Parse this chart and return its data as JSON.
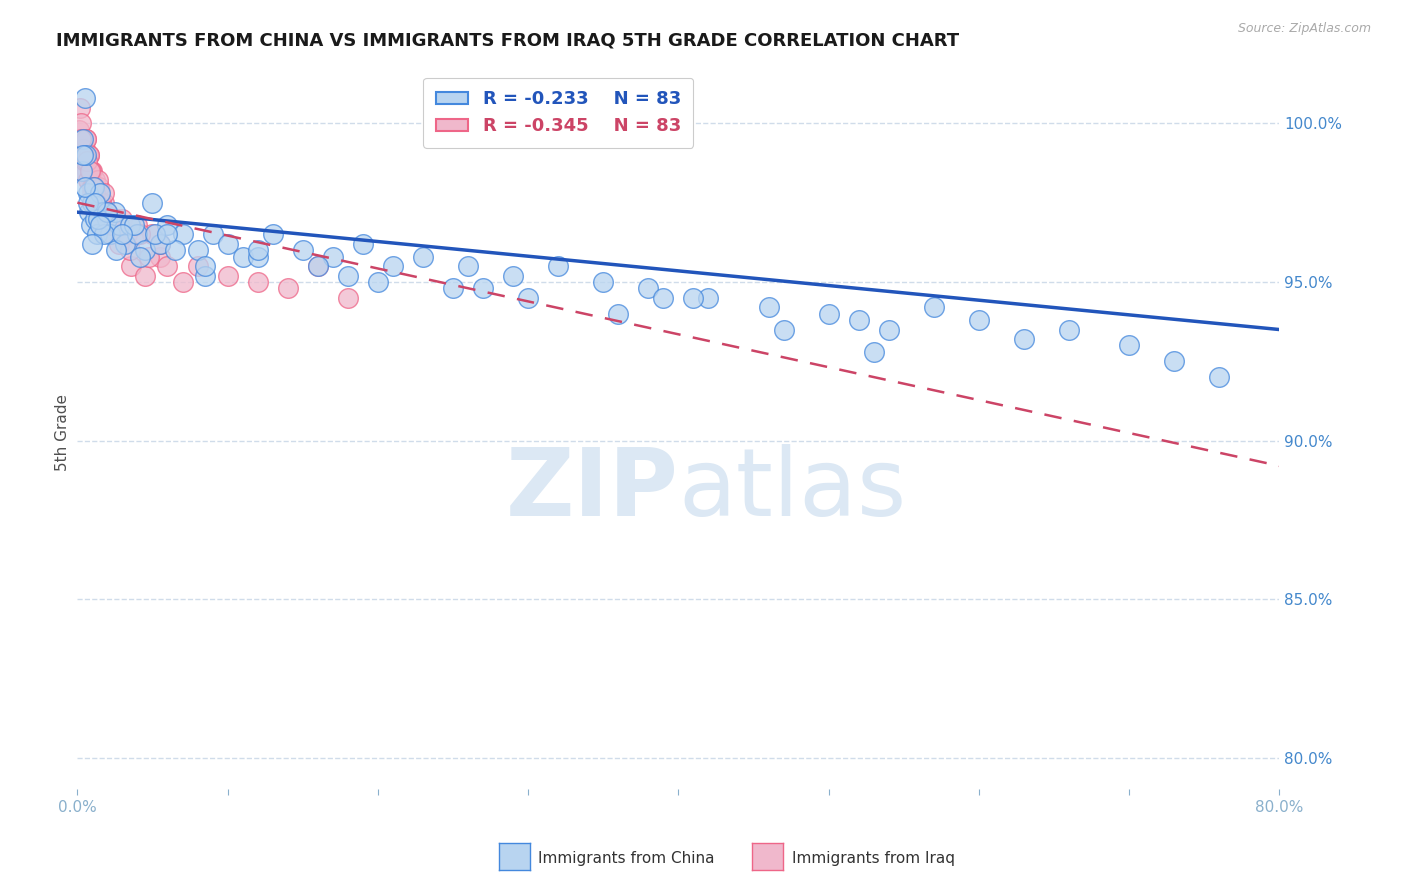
{
  "title": "IMMIGRANTS FROM CHINA VS IMMIGRANTS FROM IRAQ 5TH GRADE CORRELATION CHART",
  "source": "Source: ZipAtlas.com",
  "ylabel": "5th Grade",
  "y_ticks": [
    80.0,
    85.0,
    90.0,
    95.0,
    100.0
  ],
  "x_range": [
    0.0,
    80.0
  ],
  "y_range": [
    79.0,
    101.5
  ],
  "legend_china": "Immigrants from China",
  "legend_iraq": "Immigrants from Iraq",
  "R_china": -0.233,
  "N_china": 83,
  "R_iraq": -0.345,
  "N_iraq": 83,
  "color_china_fill": "#b8d4f0",
  "color_iraq_fill": "#f0b8cc",
  "color_china_edge": "#4488dd",
  "color_iraq_edge": "#ee6688",
  "color_china_line": "#2255bb",
  "color_iraq_line": "#cc4466",
  "color_grid": "#d0dcea",
  "color_title": "#1a1a1a",
  "color_ytick": "#4488cc",
  "color_xtick": "#8ab0cc",
  "watermark_color": "#dce8f4",
  "china_x": [
    0.3,
    0.4,
    0.5,
    0.6,
    0.7,
    0.8,
    0.9,
    1.0,
    1.1,
    1.2,
    1.3,
    1.5,
    1.7,
    2.0,
    2.2,
    2.5,
    2.8,
    3.2,
    3.5,
    4.0,
    4.5,
    5.0,
    5.5,
    6.0,
    7.0,
    8.0,
    9.0,
    10.0,
    11.0,
    13.0,
    15.0,
    17.0,
    19.0,
    21.0,
    23.0,
    26.0,
    29.0,
    32.0,
    35.0,
    38.0,
    42.0,
    46.0,
    50.0,
    54.0,
    57.0,
    60.0,
    63.0,
    66.0,
    70.0,
    73.0,
    76.0,
    52.0,
    47.0,
    41.0,
    36.0,
    30.0,
    25.0,
    20.0,
    16.0,
    12.0,
    8.5,
    6.5,
    5.2,
    3.8,
    2.6,
    1.8,
    1.4,
    1.0,
    0.7,
    0.5,
    0.4,
    2.0,
    1.5,
    1.2,
    3.0,
    4.2,
    6.0,
    8.5,
    12.0,
    18.0,
    27.0,
    39.0,
    53.0
  ],
  "china_y": [
    98.5,
    99.5,
    100.8,
    99.0,
    97.8,
    97.2,
    96.8,
    97.5,
    98.0,
    97.0,
    96.5,
    97.8,
    97.2,
    97.0,
    96.5,
    97.2,
    96.8,
    96.2,
    96.8,
    96.5,
    96.0,
    97.5,
    96.2,
    96.8,
    96.5,
    96.0,
    96.5,
    96.2,
    95.8,
    96.5,
    96.0,
    95.8,
    96.2,
    95.5,
    95.8,
    95.5,
    95.2,
    95.5,
    95.0,
    94.8,
    94.5,
    94.2,
    94.0,
    93.5,
    94.2,
    93.8,
    93.2,
    93.5,
    93.0,
    92.5,
    92.0,
    93.8,
    93.5,
    94.5,
    94.0,
    94.5,
    94.8,
    95.0,
    95.5,
    95.8,
    95.2,
    96.0,
    96.5,
    96.8,
    96.0,
    96.5,
    97.0,
    96.2,
    97.5,
    98.0,
    99.0,
    97.2,
    96.8,
    97.5,
    96.5,
    95.8,
    96.5,
    95.5,
    96.0,
    95.2,
    94.8,
    94.5,
    92.8
  ],
  "iraq_x": [
    0.1,
    0.15,
    0.2,
    0.25,
    0.3,
    0.35,
    0.4,
    0.45,
    0.5,
    0.55,
    0.6,
    0.65,
    0.7,
    0.75,
    0.8,
    0.85,
    0.9,
    0.95,
    1.0,
    1.05,
    1.1,
    1.15,
    1.2,
    1.25,
    1.3,
    1.35,
    1.4,
    1.45,
    1.5,
    1.6,
    1.7,
    1.8,
    1.9,
    2.0,
    2.1,
    2.2,
    2.4,
    2.6,
    2.8,
    3.0,
    3.3,
    3.6,
    4.0,
    4.5,
    5.0,
    5.5,
    6.0,
    7.0,
    8.0,
    10.0,
    12.0,
    14.0,
    16.0,
    18.0,
    0.2,
    0.3,
    0.4,
    0.5,
    0.6,
    0.7,
    0.8,
    0.9,
    1.0,
    1.2,
    1.4,
    1.6,
    1.8,
    2.0,
    2.3,
    2.6,
    3.0,
    3.5,
    4.2,
    4.8,
    5.5,
    0.25,
    0.45,
    0.65,
    0.85,
    1.05,
    1.25,
    1.45,
    1.65
  ],
  "iraq_y": [
    99.8,
    100.5,
    99.2,
    100.0,
    98.8,
    99.5,
    99.0,
    98.5,
    99.2,
    98.8,
    99.5,
    98.5,
    99.0,
    98.2,
    99.0,
    98.5,
    98.2,
    97.8,
    98.5,
    97.5,
    98.0,
    97.8,
    98.2,
    97.5,
    97.8,
    97.2,
    97.5,
    98.0,
    97.2,
    97.5,
    97.0,
    97.5,
    96.8,
    97.2,
    96.8,
    97.0,
    96.5,
    97.0,
    96.2,
    97.0,
    96.5,
    95.5,
    96.8,
    95.2,
    96.5,
    95.8,
    95.5,
    95.0,
    95.5,
    95.2,
    95.0,
    94.8,
    95.5,
    94.5,
    99.0,
    98.5,
    99.2,
    98.8,
    99.5,
    98.2,
    99.0,
    98.5,
    98.0,
    97.8,
    98.2,
    97.5,
    97.8,
    97.2,
    96.8,
    97.0,
    96.5,
    96.0,
    96.5,
    95.8,
    96.2,
    99.5,
    99.0,
    98.8,
    98.5,
    98.0,
    97.5,
    97.0,
    96.8
  ],
  "trend_china_x0": 0.0,
  "trend_china_y0": 97.2,
  "trend_china_x1": 80.0,
  "trend_china_y1": 93.5,
  "trend_iraq_x0": 0.0,
  "trend_iraq_y0": 97.5,
  "trend_iraq_x1": 80.0,
  "trend_iraq_y1": 89.2
}
